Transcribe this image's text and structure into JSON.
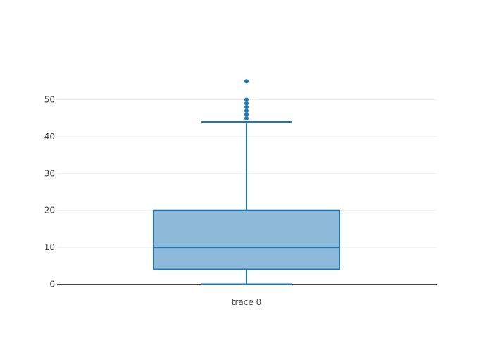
{
  "chart_data": {
    "type": "box",
    "title": "",
    "xlabel": "",
    "ylabel": "",
    "ylim": [
      -0.5,
      62
    ],
    "yticks": [
      0,
      10,
      20,
      30,
      40,
      50
    ],
    "grid": true,
    "legend": "none",
    "categories": [
      "trace 0"
    ],
    "box": {
      "min": 0,
      "q1": 4,
      "median": 10,
      "q3": 20,
      "upper_whisker": 44,
      "outliers": [
        45,
        46,
        47,
        48,
        49,
        50,
        55
      ]
    },
    "colors": {
      "line": "#1f77b4",
      "fill": "#8fb9d9",
      "grid": "#eeeeee",
      "zeroline": "#444444"
    }
  }
}
